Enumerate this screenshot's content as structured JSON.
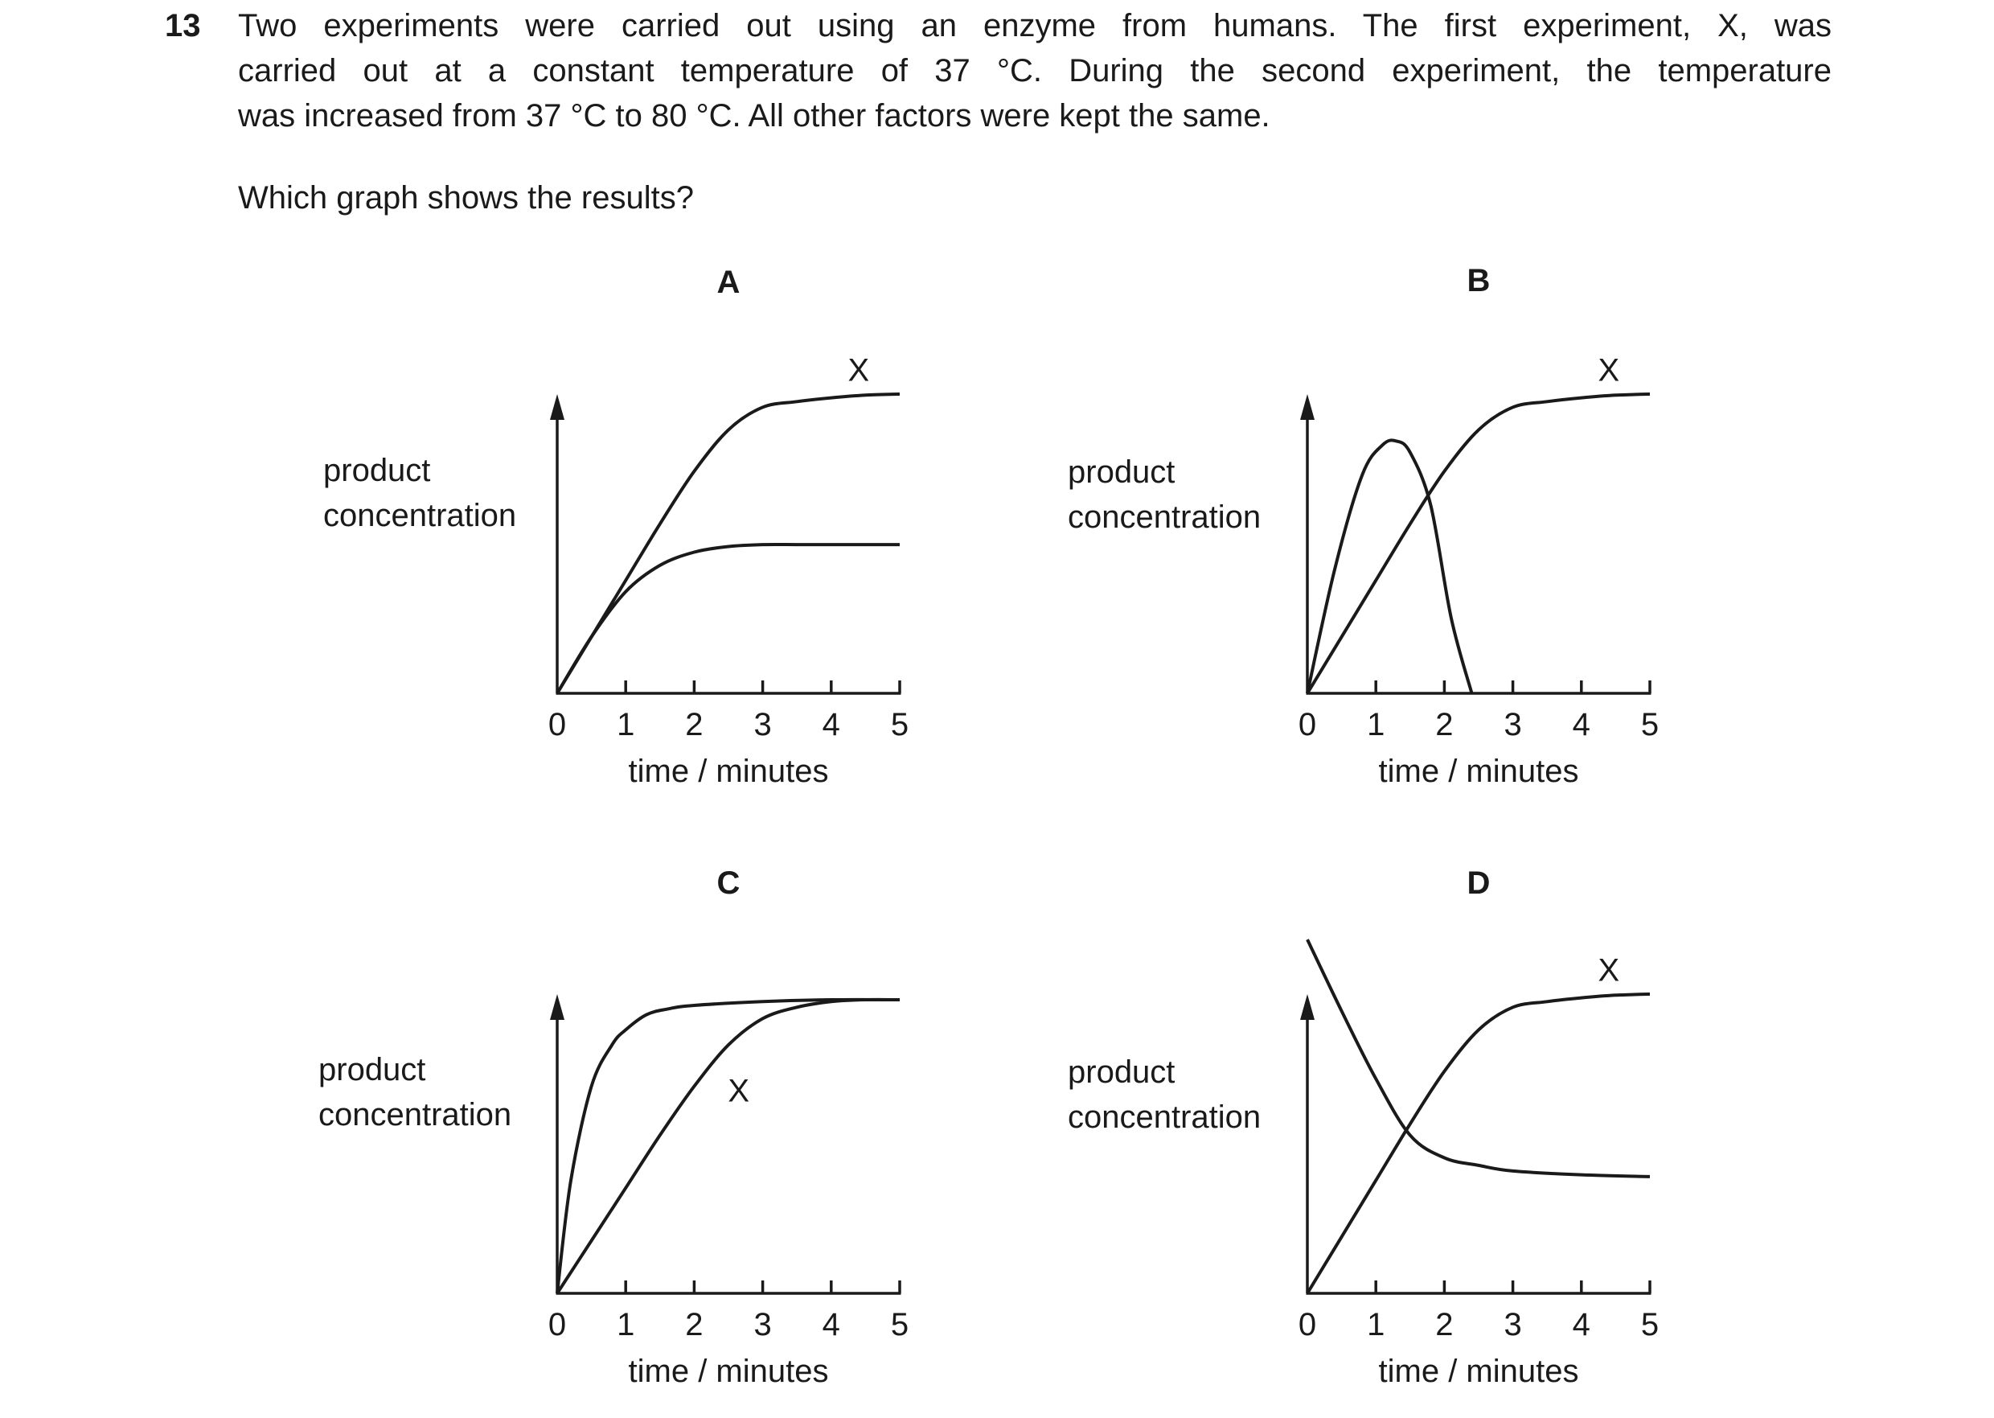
{
  "question": {
    "number": "13",
    "stem_lines": [
      "Two experiments were carried out using an enzyme from humans. The first experiment, X, was",
      "carried out at a constant temperature of 37 °C. During the second experiment, the temperature",
      "was increased from 37 °C to 80 °C. All other factors were kept the same."
    ],
    "prompt": "Which graph shows the results?"
  },
  "colors": {
    "ink": "#1a1a1a",
    "background": "#ffffff"
  },
  "chart_data": [
    {
      "type": "line",
      "option": "A",
      "ylabel_lines": [
        "product",
        "concentration"
      ],
      "xlabel": "time / minutes",
      "x_ticks": [
        "0",
        "1",
        "2",
        "3",
        "4",
        "5"
      ],
      "xlim": [
        0,
        5
      ],
      "ylim": [
        0,
        100
      ],
      "y_axis_numeric_labels": false,
      "series": [
        {
          "name": "X",
          "x": [
            0,
            0.5,
            1,
            1.5,
            2,
            2.5,
            3,
            3.5,
            4,
            4.5,
            5
          ],
          "values": [
            0,
            15,
            30,
            45,
            59,
            70,
            76,
            77.5,
            78.5,
            79.2,
            79.5
          ],
          "label_at": [
            4.4,
            86
          ]
        },
        {
          "name": "",
          "x": [
            0,
            0.5,
            1,
            1.5,
            2,
            2.5,
            3,
            3.5,
            4,
            4.5,
            5
          ],
          "values": [
            0,
            15,
            27,
            34,
            37.5,
            39,
            39.5,
            39.5,
            39.5,
            39.5,
            39.5
          ]
        }
      ]
    },
    {
      "type": "line",
      "option": "B",
      "ylabel_lines": [
        "product",
        "concentration"
      ],
      "xlabel": "time / minutes",
      "x_ticks": [
        "0",
        "1",
        "2",
        "3",
        "4",
        "5"
      ],
      "xlim": [
        0,
        5
      ],
      "ylim": [
        0,
        100
      ],
      "y_axis_numeric_labels": false,
      "series": [
        {
          "name": "X",
          "x": [
            0,
            0.5,
            1,
            1.5,
            2,
            2.5,
            3,
            3.5,
            4,
            4.5,
            5
          ],
          "values": [
            0,
            15,
            30,
            45,
            59,
            70,
            76,
            77.5,
            78.5,
            79.2,
            79.5
          ],
          "label_at": [
            4.4,
            86
          ]
        },
        {
          "name": "",
          "x": [
            0,
            0.4,
            0.8,
            1.1,
            1.3,
            1.5,
            1.8,
            2.1,
            2.4
          ],
          "values": [
            0,
            33,
            58,
            66,
            67,
            64,
            50,
            20,
            0
          ]
        }
      ]
    },
    {
      "type": "line",
      "option": "C",
      "ylabel_lines": [
        "product",
        "concentration"
      ],
      "xlabel": "time / minutes",
      "x_ticks": [
        "0",
        "1",
        "2",
        "3",
        "4",
        "5"
      ],
      "xlim": [
        0,
        5
      ],
      "ylim": [
        0,
        100
      ],
      "y_axis_numeric_labels": false,
      "series": [
        {
          "name": "X",
          "x": [
            0,
            0.5,
            1,
            1.5,
            2,
            2.5,
            3,
            3.5,
            4,
            4.5,
            5
          ],
          "values": [
            0,
            14,
            28,
            42,
            55,
            66,
            73,
            76,
            77.5,
            78,
            78
          ],
          "label_at": [
            2.65,
            54
          ]
        },
        {
          "name": "",
          "x": [
            0,
            0.2,
            0.5,
            0.8,
            1,
            1.3,
            1.6,
            2,
            3,
            4,
            5
          ],
          "values": [
            0,
            30,
            55,
            66,
            70,
            74,
            75.5,
            76.5,
            77.5,
            78,
            78
          ]
        }
      ]
    },
    {
      "type": "line",
      "option": "D",
      "ylabel_lines": [
        "product",
        "concentration"
      ],
      "xlabel": "time / minutes",
      "x_ticks": [
        "0",
        "1",
        "2",
        "3",
        "4",
        "5"
      ],
      "xlim": [
        0,
        5
      ],
      "ylim": [
        0,
        100
      ],
      "y_axis_numeric_labels": false,
      "series": [
        {
          "name": "X",
          "x": [
            0,
            0.5,
            1,
            1.5,
            2,
            2.5,
            3,
            3.5,
            4,
            4.5,
            5
          ],
          "values": [
            0,
            15,
            30,
            45,
            59,
            70,
            76,
            77.5,
            78.5,
            79.2,
            79.5
          ],
          "label_at": [
            4.4,
            86
          ]
        },
        {
          "name": "",
          "x": [
            0,
            0.5,
            1,
            1.5,
            2,
            2.5,
            3,
            4,
            5
          ],
          "values": [
            94,
            75,
            57,
            42,
            36,
            34,
            32.5,
            31.5,
            31
          ]
        }
      ]
    }
  ]
}
